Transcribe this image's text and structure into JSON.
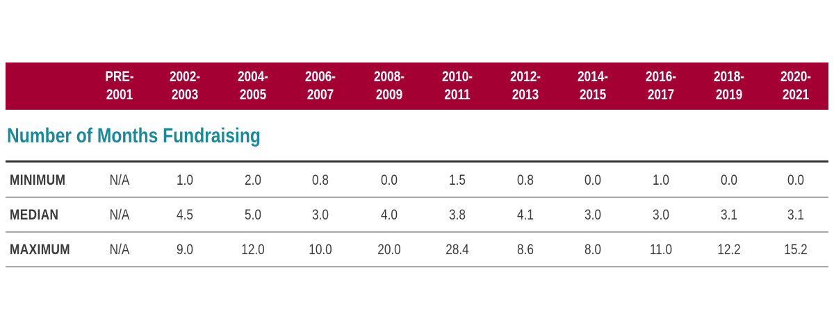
{
  "chart_data": {
    "type": "table",
    "title": "Number of Months Fundraising",
    "columns": [
      [
        "PRE-",
        "2001"
      ],
      [
        "2002-",
        "2003"
      ],
      [
        "2004-",
        "2005"
      ],
      [
        "2006-",
        "2007"
      ],
      [
        "2008-",
        "2009"
      ],
      [
        "2010-",
        "2011"
      ],
      [
        "2012-",
        "2013"
      ],
      [
        "2014-",
        "2015"
      ],
      [
        "2016-",
        "2017"
      ],
      [
        "2018-",
        "2019"
      ],
      [
        "2020-",
        "2021"
      ]
    ],
    "rows": [
      {
        "label": "MINIMUM",
        "values": [
          "N/A",
          "1.0",
          "2.0",
          "0.8",
          "0.0",
          "1.5",
          "0.8",
          "0.0",
          "1.0",
          "0.0",
          "0.0"
        ]
      },
      {
        "label": "MEDIAN",
        "values": [
          "N/A",
          "4.5",
          "5.0",
          "3.0",
          "4.0",
          "3.8",
          "4.1",
          "3.0",
          "3.0",
          "3.1",
          "3.1"
        ]
      },
      {
        "label": "MAXIMUM",
        "values": [
          "N/A",
          "9.0",
          "12.0",
          "10.0",
          "20.0",
          "28.4",
          "8.6",
          "8.0",
          "11.0",
          "12.2",
          "15.2"
        ]
      }
    ],
    "colors": {
      "header_background": "#a50034",
      "header_text": "#ffffff",
      "title_text": "#1a8a9a",
      "body_text": "#3a3a3a"
    }
  }
}
